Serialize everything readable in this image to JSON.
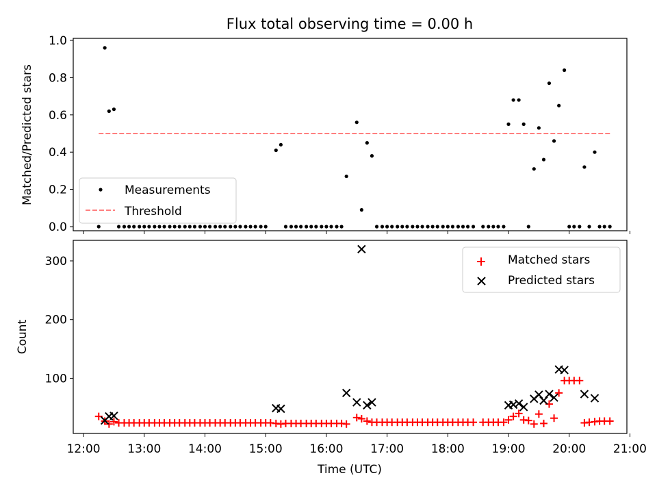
{
  "title": "Flux total observing time = 0.00 h",
  "x_axis_label": "Time (UTC)",
  "chart_data": [
    {
      "type": "scatter",
      "ylabel": "Matched/Predicted stars",
      "ylim": [
        0,
        1.0
      ],
      "yticks": [
        0.0,
        0.2,
        0.4,
        0.6,
        0.8,
        1.0
      ],
      "ytick_labels": [
        "0.0",
        "0.2",
        "0.4",
        "0.6",
        "0.8",
        "1.0"
      ],
      "legend": {
        "placement": "lower-left",
        "entries": [
          "Measurements",
          "Threshold"
        ]
      },
      "threshold": {
        "name": "Threshold",
        "y": 0.5,
        "x_start": 12.25,
        "x_end": 20.7,
        "color": "#ff7f7f",
        "style": "dashed"
      },
      "series": [
        {
          "name": "Measurements",
          "marker": "dot",
          "color": "#000000",
          "points": [
            [
              12.25,
              0.0
            ],
            [
              12.35,
              0.96
            ],
            [
              12.42,
              0.62
            ],
            [
              12.5,
              0.63
            ],
            [
              12.58,
              0.0
            ],
            [
              12.67,
              0.0
            ],
            [
              12.75,
              0.0
            ],
            [
              12.83,
              0.0
            ],
            [
              12.92,
              0.0
            ],
            [
              13.0,
              0.0
            ],
            [
              13.08,
              0.0
            ],
            [
              13.17,
              0.0
            ],
            [
              13.25,
              0.0
            ],
            [
              13.33,
              0.0
            ],
            [
              13.42,
              0.0
            ],
            [
              13.5,
              0.0
            ],
            [
              13.58,
              0.0
            ],
            [
              13.67,
              0.0
            ],
            [
              13.75,
              0.0
            ],
            [
              13.83,
              0.0
            ],
            [
              13.92,
              0.0
            ],
            [
              14.0,
              0.0
            ],
            [
              14.08,
              0.0
            ],
            [
              14.17,
              0.0
            ],
            [
              14.25,
              0.0
            ],
            [
              14.33,
              0.0
            ],
            [
              14.42,
              0.0
            ],
            [
              14.5,
              0.0
            ],
            [
              14.58,
              0.0
            ],
            [
              14.67,
              0.0
            ],
            [
              14.75,
              0.0
            ],
            [
              14.83,
              0.0
            ],
            [
              14.92,
              0.0
            ],
            [
              15.0,
              0.0
            ],
            [
              15.17,
              0.41
            ],
            [
              15.25,
              0.44
            ],
            [
              15.33,
              0.0
            ],
            [
              15.42,
              0.0
            ],
            [
              15.5,
              0.0
            ],
            [
              15.58,
              0.0
            ],
            [
              15.67,
              0.0
            ],
            [
              15.75,
              0.0
            ],
            [
              15.83,
              0.0
            ],
            [
              15.92,
              0.0
            ],
            [
              16.0,
              0.0
            ],
            [
              16.08,
              0.0
            ],
            [
              16.17,
              0.0
            ],
            [
              16.25,
              0.0
            ],
            [
              16.33,
              0.27
            ],
            [
              16.5,
              0.56
            ],
            [
              16.58,
              0.09
            ],
            [
              16.67,
              0.45
            ],
            [
              16.75,
              0.38
            ],
            [
              16.83,
              0.0
            ],
            [
              16.92,
              0.0
            ],
            [
              17.0,
              0.0
            ],
            [
              17.08,
              0.0
            ],
            [
              17.17,
              0.0
            ],
            [
              17.25,
              0.0
            ],
            [
              17.33,
              0.0
            ],
            [
              17.42,
              0.0
            ],
            [
              17.5,
              0.0
            ],
            [
              17.58,
              0.0
            ],
            [
              17.67,
              0.0
            ],
            [
              17.75,
              0.0
            ],
            [
              17.83,
              0.0
            ],
            [
              17.92,
              0.0
            ],
            [
              18.0,
              0.0
            ],
            [
              18.08,
              0.0
            ],
            [
              18.17,
              0.0
            ],
            [
              18.25,
              0.0
            ],
            [
              18.33,
              0.0
            ],
            [
              18.42,
              0.0
            ],
            [
              18.58,
              0.0
            ],
            [
              18.67,
              0.0
            ],
            [
              18.75,
              0.0
            ],
            [
              18.83,
              0.0
            ],
            [
              18.92,
              0.0
            ],
            [
              19.0,
              0.55
            ],
            [
              19.08,
              0.68
            ],
            [
              19.17,
              0.68
            ],
            [
              19.25,
              0.55
            ],
            [
              19.33,
              0.0
            ],
            [
              19.42,
              0.31
            ],
            [
              19.5,
              0.53
            ],
            [
              19.58,
              0.36
            ],
            [
              19.67,
              0.77
            ],
            [
              19.75,
              0.46
            ],
            [
              19.83,
              0.65
            ],
            [
              19.92,
              0.84
            ],
            [
              20.0,
              0.0
            ],
            [
              20.08,
              0.0
            ],
            [
              20.17,
              0.0
            ],
            [
              20.25,
              0.32
            ],
            [
              20.33,
              0.0
            ],
            [
              20.42,
              0.4
            ],
            [
              20.5,
              0.0
            ],
            [
              20.58,
              0.0
            ],
            [
              20.67,
              0.0
            ]
          ]
        }
      ]
    },
    {
      "type": "scatter",
      "ylabel": "Count",
      "xlabel": "Time (UTC)",
      "xlim": [
        11.83,
        20.95
      ],
      "ylim": [
        6,
        335
      ],
      "xticks": [
        12,
        13,
        14,
        15,
        16,
        17,
        18,
        19,
        20,
        21
      ],
      "xtick_labels": [
        "12:00",
        "13:00",
        "14:00",
        "15:00",
        "16:00",
        "17:00",
        "18:00",
        "19:00",
        "20:00",
        "21:00"
      ],
      "yticks": [
        100,
        200,
        300
      ],
      "ytick_labels": [
        "100",
        "200",
        "300"
      ],
      "legend": {
        "placement": "upper-right",
        "entries": [
          "Matched stars",
          "Predicted stars"
        ]
      },
      "series": [
        {
          "name": "Matched stars",
          "marker": "plus",
          "color": "#ff0000",
          "points": [
            [
              12.25,
              35
            ],
            [
              12.35,
              27
            ],
            [
              12.42,
              22
            ],
            [
              12.5,
              26
            ],
            [
              12.58,
              24
            ],
            [
              12.67,
              24
            ],
            [
              12.75,
              24
            ],
            [
              12.83,
              24
            ],
            [
              12.92,
              24
            ],
            [
              13.0,
              24
            ],
            [
              13.08,
              24
            ],
            [
              13.17,
              24
            ],
            [
              13.25,
              24
            ],
            [
              13.33,
              24
            ],
            [
              13.42,
              24
            ],
            [
              13.5,
              24
            ],
            [
              13.58,
              24
            ],
            [
              13.67,
              24
            ],
            [
              13.75,
              24
            ],
            [
              13.83,
              24
            ],
            [
              13.92,
              24
            ],
            [
              14.0,
              24
            ],
            [
              14.08,
              24
            ],
            [
              14.17,
              24
            ],
            [
              14.25,
              24
            ],
            [
              14.33,
              24
            ],
            [
              14.42,
              24
            ],
            [
              14.5,
              24
            ],
            [
              14.58,
              24
            ],
            [
              14.67,
              24
            ],
            [
              14.75,
              24
            ],
            [
              14.83,
              24
            ],
            [
              14.92,
              24
            ],
            [
              15.0,
              24
            ],
            [
              15.08,
              24
            ],
            [
              15.17,
              23
            ],
            [
              15.25,
              22
            ],
            [
              15.33,
              23
            ],
            [
              15.42,
              23
            ],
            [
              15.5,
              23
            ],
            [
              15.58,
              23
            ],
            [
              15.67,
              23
            ],
            [
              15.75,
              23
            ],
            [
              15.83,
              23
            ],
            [
              15.92,
              23
            ],
            [
              16.0,
              23
            ],
            [
              16.08,
              23
            ],
            [
              16.17,
              23
            ],
            [
              16.25,
              23
            ],
            [
              16.33,
              22
            ],
            [
              16.5,
              33
            ],
            [
              16.58,
              31
            ],
            [
              16.67,
              27
            ],
            [
              16.75,
              25
            ],
            [
              16.83,
              25
            ],
            [
              16.92,
              25
            ],
            [
              17.0,
              25
            ],
            [
              17.08,
              25
            ],
            [
              17.17,
              25
            ],
            [
              17.25,
              25
            ],
            [
              17.33,
              25
            ],
            [
              17.42,
              25
            ],
            [
              17.5,
              25
            ],
            [
              17.58,
              25
            ],
            [
              17.67,
              25
            ],
            [
              17.75,
              25
            ],
            [
              17.83,
              25
            ],
            [
              17.92,
              25
            ],
            [
              18.0,
              25
            ],
            [
              18.08,
              25
            ],
            [
              18.17,
              25
            ],
            [
              18.25,
              25
            ],
            [
              18.33,
              25
            ],
            [
              18.42,
              25
            ],
            [
              18.58,
              25
            ],
            [
              18.67,
              25
            ],
            [
              18.75,
              25
            ],
            [
              18.83,
              25
            ],
            [
              18.92,
              25
            ],
            [
              19.0,
              29
            ],
            [
              19.08,
              35
            ],
            [
              19.17,
              40
            ],
            [
              19.25,
              29
            ],
            [
              19.33,
              28
            ],
            [
              19.42,
              22
            ],
            [
              19.5,
              39
            ],
            [
              19.58,
              23
            ],
            [
              19.67,
              56
            ],
            [
              19.75,
              32
            ],
            [
              19.83,
              75
            ],
            [
              19.92,
              96
            ],
            [
              20.0,
              96
            ],
            [
              20.08,
              96
            ],
            [
              20.17,
              96
            ],
            [
              20.25,
              24
            ],
            [
              20.33,
              25
            ],
            [
              20.42,
              26
            ],
            [
              20.5,
              27
            ],
            [
              20.58,
              27
            ],
            [
              20.67,
              27
            ]
          ]
        },
        {
          "name": "Predicted stars",
          "marker": "x",
          "color": "#000000",
          "points": [
            [
              12.35,
              28
            ],
            [
              12.42,
              35
            ],
            [
              12.5,
              36
            ],
            [
              15.17,
              49
            ],
            [
              15.25,
              48
            ],
            [
              16.33,
              75
            ],
            [
              16.5,
              59
            ],
            [
              16.58,
              320
            ],
            [
              16.67,
              54
            ],
            [
              16.75,
              59
            ],
            [
              19.0,
              54
            ],
            [
              19.08,
              55
            ],
            [
              19.17,
              57
            ],
            [
              19.25,
              51
            ],
            [
              19.42,
              65
            ],
            [
              19.5,
              72
            ],
            [
              19.58,
              62
            ],
            [
              19.67,
              73
            ],
            [
              19.75,
              67
            ],
            [
              19.83,
              115
            ],
            [
              19.92,
              114
            ],
            [
              20.25,
              73
            ],
            [
              20.42,
              66
            ]
          ]
        }
      ]
    }
  ]
}
